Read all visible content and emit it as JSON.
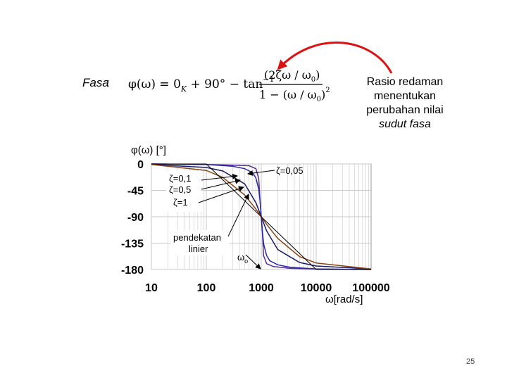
{
  "heading": {
    "fasa_label": "Fasa",
    "colon": ":",
    "formula": {
      "lhs": "φ(ω) = 0",
      "subscript_k": "K",
      "middle": " + 90° − tan",
      "sup": "−1",
      "numerator": "(2ζω / ω",
      "numerator_sub": "0",
      "numerator_end": ")",
      "denominator": "1 − (ω / ω",
      "denominator_sub": "0",
      "denominator_end": ")",
      "denominator_sup": "2"
    }
  },
  "note": {
    "line1": "Rasio redaman",
    "line2": "menentukan",
    "line3": "perubahan nilai",
    "line4": "sudut fasa"
  },
  "colors": {
    "arrow": "#dd1111",
    "curve_01": "#2a2aa0",
    "curve_05": "#1a1a66",
    "curve_1": "#8b4513",
    "curve_005": "#5a2a9a",
    "asymptote": "#000000",
    "grid": "#c8c8c8"
  },
  "chart_data": {
    "type": "line",
    "x_scale": "log",
    "xlim": [
      10,
      100000
    ],
    "ylim": [
      -180,
      0
    ],
    "grid": true,
    "xlabel": "ω[rad/s]",
    "ylabel": "φ(ω) [°]",
    "x_ticks": [
      "10",
      "100",
      "1000",
      "10000",
      "100000"
    ],
    "y_ticks": [
      "0",
      "-45",
      "-90",
      "-135",
      "-180"
    ],
    "omega0": 1000,
    "series": [
      {
        "name": "ζ=0,05",
        "color_key": "curve_005",
        "zeta": 0.05,
        "x": [
          10,
          100,
          300,
          600,
          800,
          900,
          950,
          1000,
          1050,
          1100,
          1250,
          1660,
          3300,
          10000,
          100000
        ],
        "y": [
          0,
          -1,
          -2,
          -3,
          -8,
          -25,
          -63,
          -90,
          -118,
          -156,
          -170,
          -175,
          -178,
          -179,
          -180
        ]
      },
      {
        "name": "ζ=0,1",
        "color_key": "curve_01",
        "zeta": 0.1,
        "x": [
          10,
          100,
          300,
          500,
          700,
          800,
          900,
          950,
          1000,
          1050,
          1110,
          1250,
          1430,
          2000,
          3330,
          10000,
          100000
        ],
        "y": [
          0,
          -1,
          -4,
          -8,
          -15,
          -24,
          -43,
          -63,
          -90,
          -116,
          -137,
          -156,
          -165,
          -172,
          -176,
          -179,
          -180
        ]
      },
      {
        "name": "ζ=0,5",
        "color_key": "curve_05",
        "zeta": 0.5,
        "x": [
          10,
          100,
          200,
          500,
          800,
          1000,
          1250,
          2000,
          5000,
          10000,
          100000
        ],
        "y": [
          -1,
          -6,
          -12,
          -34,
          -66,
          -90,
          -114,
          -146,
          -168,
          -174,
          -179
        ]
      },
      {
        "name": "ζ=1",
        "color_key": "curve_1",
        "zeta": 1,
        "x": [
          10,
          100,
          200,
          500,
          800,
          1000,
          1250,
          2000,
          5000,
          10000,
          100000
        ],
        "y": [
          -1,
          -11,
          -23,
          -53,
          -77,
          -90,
          -103,
          -127,
          -158,
          -169,
          -179
        ]
      },
      {
        "name": "pendekatan linier",
        "color_key": "asymptote",
        "x": [
          10,
          100,
          10000,
          100000
        ],
        "y": [
          0,
          0,
          -180,
          -180
        ]
      }
    ],
    "annotations": {
      "zeta005": "ζ=0,05",
      "zeta01": "ζ=0,1",
      "zeta05": "ζ=0,5",
      "zeta1": "ζ=1",
      "linier1": "pendekatan",
      "linier2": "linier",
      "omega0": "ω",
      "omega0_sub": "o"
    }
  },
  "page_number": "25"
}
